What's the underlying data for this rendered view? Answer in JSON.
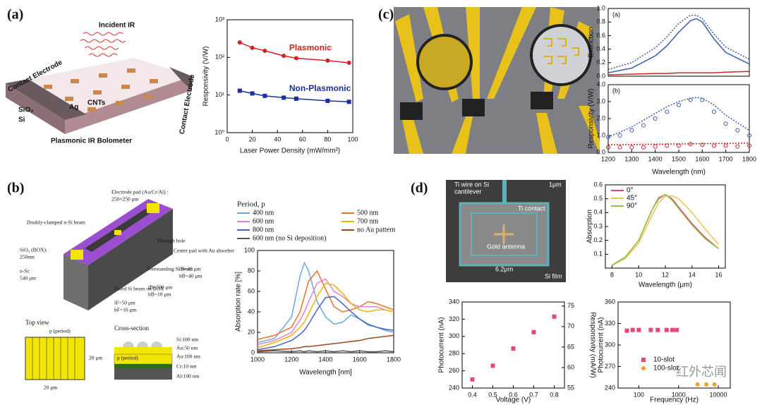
{
  "panels": {
    "a": "(a)",
    "b": "(b)",
    "c": "(c)",
    "d": "(d)"
  },
  "illustrations": {
    "a": [
      "Incident IR",
      "Contact Electrode",
      "Contact Electrode",
      "SiO₂",
      "Si",
      "Ag",
      "CNTs",
      "Plasmonic IR Bolometer"
    ],
    "b": [
      "Electrode pad (Au/Cr/Al) :",
      "250×250 μm",
      "Doubly-clamped n-Si beam",
      "Through hole",
      "Center pad with Au absorber",
      "SiO₂ (BOX):",
      "250nm",
      "n-Si:",
      "540 μm",
      "Freestanding Si beam",
      "lB=40 μm",
      "bB=40 μm",
      "lB=500 μm",
      "bB=10 μm",
      "Fixed Si beam on BOX",
      "lF=50 μm",
      "bF=10 μm",
      "Top view",
      "p (period)",
      "20 μm",
      "20 μm",
      "Cross-section",
      "Si:100 nm",
      "Au:50 nm",
      "Au:100 nm",
      "p (period)",
      "Cr:10 nm",
      "Al:100 nm"
    ],
    "d": [
      "Ti wire on Si",
      "cantilever",
      "1μm",
      "Ti contact",
      "Gold antenna",
      "6.2μm",
      "Si film"
    ]
  },
  "watermark": "红外芯闻",
  "chart_data": [
    {
      "type": "line",
      "xlabel": "Laser Power Density (mW/mm²)",
      "ylabel": "Responsivity (V/W)",
      "xlim": [
        0,
        100
      ],
      "xticks": [
        0,
        20,
        40,
        60,
        80,
        100
      ],
      "ylim": [
        1,
        1000
      ],
      "log_y": true,
      "yticks": [
        {
          "value": 1,
          "label": "10⁰"
        },
        {
          "value": 10,
          "label": "10¹"
        },
        {
          "value": 100,
          "label": "10²"
        },
        {
          "value": 1000,
          "label": "10³"
        }
      ],
      "legend": "inline",
      "x": [
        10,
        20,
        30,
        45,
        55,
        80,
        97
      ],
      "series": [
        {
          "name": "Plasmonic",
          "color": "#d62020",
          "style": "line+markers",
          "marker": "circle",
          "values": [
            250,
            180,
            150,
            110,
            95,
            82,
            72
          ]
        },
        {
          "name": "Non-Plasmonic",
          "color": "#1a2fa0",
          "style": "line+markers",
          "marker": "square",
          "values": [
            13,
            11,
            9.5,
            8.5,
            8,
            7,
            6.6
          ]
        }
      ]
    },
    {
      "type": "line",
      "tag": "(a)",
      "ylabel": "Extinction",
      "xlim": [
        1200,
        1800
      ],
      "ylim": [
        0,
        1
      ],
      "yticks": [
        {
          "value": 0,
          "label": "0.0"
        },
        0.2,
        0.4,
        0.6,
        0.8,
        {
          "value": 1,
          "label": "1.0"
        }
      ],
      "x": [
        1200,
        1300,
        1400,
        1450,
        1500,
        1550,
        1575,
        1600,
        1650,
        1700,
        1800
      ],
      "series": [
        {
          "color": "#3b5bb5",
          "style": "line",
          "values": [
            0.05,
            0.12,
            0.3,
            0.45,
            0.65,
            0.82,
            0.85,
            0.8,
            0.55,
            0.35,
            0.18
          ]
        },
        {
          "color": "#3b5bb5",
          "style": "dotted",
          "values": [
            0.1,
            0.2,
            0.42,
            0.58,
            0.78,
            0.9,
            0.9,
            0.85,
            0.62,
            0.43,
            0.25
          ]
        },
        {
          "color": "#d62020",
          "style": "line",
          "values": [
            0.02,
            0.03,
            0.04,
            0.04,
            0.05,
            0.05,
            0.05,
            0.05,
            0.05,
            0.06,
            0.07
          ]
        }
      ]
    },
    {
      "type": "line",
      "tag": "(b)",
      "xlabel": "Wavelength (nm)",
      "ylabel": "Responsivity (V/W)",
      "xlim": [
        1200,
        1800
      ],
      "xticks": [
        1200,
        1300,
        1400,
        1500,
        1600,
        1700,
        1800
      ],
      "ylim": [
        0,
        4
      ],
      "yticks": [
        {
          "value": 0,
          "label": "0.0"
        },
        {
          "value": 1,
          "label": "1.0"
        },
        {
          "value": 2,
          "label": "2.0"
        },
        {
          "value": 3,
          "label": "3.0"
        },
        {
          "value": 4,
          "label": "4.0"
        }
      ],
      "series": [
        {
          "color": "#3b5bb5",
          "style": "dotted",
          "x": [
            1200,
            1300,
            1400,
            1450,
            1500,
            1550,
            1575,
            1600,
            1650,
            1700,
            1800
          ],
          "values": [
            0.9,
            1.5,
            2.3,
            2.7,
            3.0,
            3.2,
            3.25,
            3.2,
            2.8,
            2.2,
            1.3
          ]
        },
        {
          "color": "#3b5bb5",
          "style": "markers",
          "marker": "circle-open",
          "x": [
            1200,
            1250,
            1300,
            1350,
            1400,
            1450,
            1500,
            1550,
            1600,
            1650,
            1700,
            1750,
            1800
          ],
          "values": [
            0.9,
            1.0,
            1.3,
            1.6,
            2.0,
            2.4,
            2.8,
            3.1,
            3.1,
            2.4,
            1.7,
            1.3,
            1.0
          ]
        },
        {
          "color": "#d62020",
          "style": "markers",
          "marker": "circle-open",
          "x": [
            1200,
            1250,
            1300,
            1350,
            1400,
            1450,
            1500,
            1550,
            1600,
            1650,
            1700,
            1750,
            1800
          ],
          "values": [
            0.3,
            0.3,
            0.3,
            0.3,
            0.35,
            0.4,
            0.4,
            0.5,
            0.45,
            0.4,
            0.4,
            0.35,
            0.4
          ]
        },
        {
          "color": "#d62020",
          "style": "dotted",
          "x": [
            1200,
            1800
          ],
          "values": [
            0.45,
            0.55
          ]
        }
      ]
    },
    {
      "type": "line",
      "xlabel": "Wavelength [nm]",
      "ylabel": "Absorption rate [%]",
      "legend_title": "Period, p",
      "legend": "top",
      "xlim": [
        1000,
        1800
      ],
      "xticks": [
        1000,
        1200,
        1400,
        1600,
        1800
      ],
      "ylim": [
        0,
        100
      ],
      "yticks": [
        0,
        20,
        40,
        60,
        80,
        100
      ],
      "x": [
        1000,
        1100,
        1200,
        1250,
        1275,
        1300,
        1350,
        1400,
        1450,
        1500,
        1550,
        1600,
        1650,
        1700,
        1750,
        1800
      ],
      "series": [
        {
          "name": "400 nm",
          "color": "#6fa8dc",
          "style": "line",
          "values": [
            10,
            14,
            35,
            75,
            88,
            80,
            50,
            35,
            28,
            30,
            37,
            33,
            27,
            25,
            22,
            20
          ]
        },
        {
          "name": "500 nm",
          "color": "#e8732c",
          "style": "line",
          "values": [
            13,
            17,
            25,
            40,
            55,
            70,
            80,
            62,
            45,
            40,
            42,
            45,
            50,
            48,
            45,
            42
          ]
        },
        {
          "name": "600 nm",
          "color": "#e87fd0",
          "style": "line",
          "values": [
            8,
            12,
            20,
            32,
            40,
            50,
            68,
            72,
            60,
            55,
            48,
            45,
            45,
            45,
            42,
            40
          ]
        },
        {
          "name": "700 nm",
          "color": "#f0b400",
          "style": "line",
          "values": [
            5,
            10,
            17,
            25,
            30,
            38,
            55,
            68,
            66,
            58,
            48,
            42,
            40,
            42,
            42,
            40
          ]
        },
        {
          "name": "800 nm",
          "color": "#4466c8",
          "style": "line",
          "values": [
            3,
            6,
            12,
            18,
            22,
            28,
            42,
            54,
            55,
            48,
            40,
            33,
            28,
            25,
            23,
            22
          ]
        },
        {
          "name": "no Au pattern",
          "color": "#a0461e",
          "style": "line",
          "values": [
            2,
            3,
            4,
            5,
            6,
            6,
            7,
            8,
            9,
            10,
            11,
            12,
            14,
            15,
            16,
            17
          ]
        },
        {
          "name": "600 nm (no Si deposition)",
          "color": "#555555",
          "style": "line",
          "values": [
            1,
            2,
            1,
            2,
            1,
            2,
            1,
            2,
            1,
            2,
            1,
            2,
            1,
            1,
            2,
            1
          ]
        }
      ]
    },
    {
      "type": "line",
      "xlabel": "Wavelength (μm)",
      "ylabel": "Absorption",
      "legend": "upper left",
      "xlim": [
        7.5,
        16.5
      ],
      "xticks": [
        8,
        10,
        12,
        14,
        16
      ],
      "ylim": [
        0,
        0.6
      ],
      "yticks": [
        0.1,
        0.2,
        0.3,
        0.4,
        0.5,
        0.6
      ],
      "x": [
        8,
        9,
        10,
        11,
        11.5,
        12,
        12.5,
        13,
        14,
        15,
        16
      ],
      "series": [
        {
          "name": "0°",
          "color": "#e0457b",
          "style": "line",
          "values": [
            0.02,
            0.08,
            0.2,
            0.42,
            0.5,
            0.53,
            0.5,
            0.44,
            0.32,
            0.22,
            0.14
          ]
        },
        {
          "name": "45°",
          "color": "#f0c24a",
          "style": "line",
          "values": [
            0.02,
            0.07,
            0.18,
            0.38,
            0.47,
            0.52,
            0.52,
            0.5,
            0.4,
            0.28,
            0.17
          ]
        },
        {
          "name": "90°",
          "color": "#8cc63f",
          "style": "line",
          "values": [
            0.02,
            0.08,
            0.2,
            0.42,
            0.51,
            0.53,
            0.49,
            0.43,
            0.31,
            0.21,
            0.14
          ]
        }
      ]
    },
    {
      "type": "scatter",
      "xlabel": "Voltage (V)",
      "ylabel": "Photocurrent (nA)",
      "y2label": "Responsivity (mA/W)",
      "xlim": [
        0.35,
        0.85
      ],
      "xticks": [
        0.4,
        0.5,
        0.6,
        0.7,
        0.8
      ],
      "ylim": [
        240,
        340
      ],
      "yticks": [
        240,
        260,
        280,
        300,
        320,
        340
      ],
      "y2lim": [
        55,
        76
      ],
      "y2ticks": [
        55,
        60,
        65,
        70,
        75
      ],
      "x": [
        0.4,
        0.5,
        0.6,
        0.7,
        0.8
      ],
      "series": [
        {
          "color": "#e8457b",
          "style": "markers",
          "marker": "square",
          "values": [
            250,
            266,
            286,
            305,
            323
          ]
        }
      ]
    },
    {
      "type": "scatter",
      "xlabel": "Frequency (Hz)",
      "ylabel": "Photocurrent (nA)",
      "legend": "lower left",
      "xlim": [
        30,
        20000
      ],
      "log_x": true,
      "xticks": [
        100,
        1000,
        10000
      ],
      "ylim": [
        240,
        360
      ],
      "yticks": [
        240,
        270,
        300,
        330,
        360
      ],
      "series": [
        {
          "name": "10-slot",
          "color": "#e8457b",
          "style": "markers",
          "marker": "square",
          "x": [
            50,
            70,
            100,
            200,
            300,
            500,
            700,
            900
          ],
          "values": [
            320,
            321,
            321,
            321,
            321,
            321,
            321,
            321
          ]
        },
        {
          "name": "100-slot",
          "color": "#f0a030",
          "style": "markers",
          "marker": "circle",
          "x": [
            3000,
            5000,
            8000
          ],
          "values": [
            245,
            245,
            245
          ]
        }
      ]
    }
  ]
}
